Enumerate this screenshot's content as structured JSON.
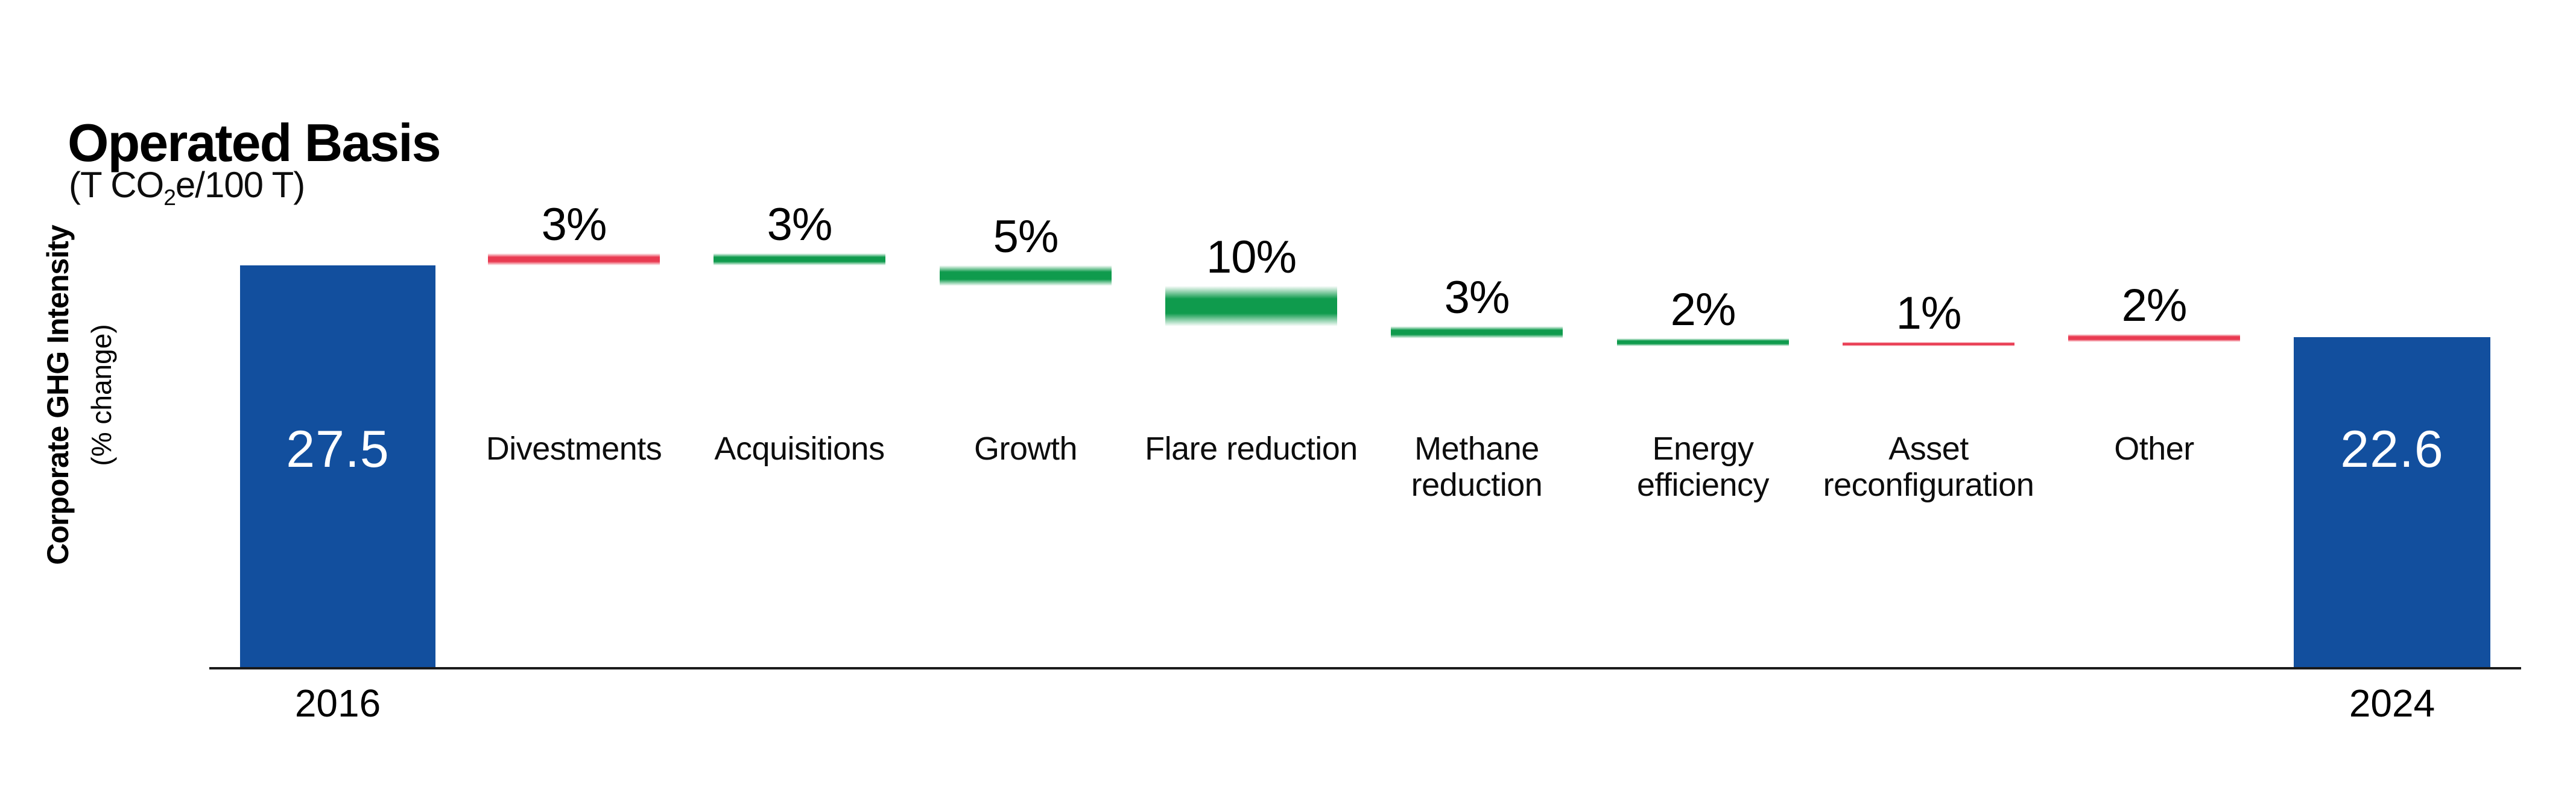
{
  "chart_data": {
    "type": "bar",
    "subtype": "waterfall",
    "title": "Operated Basis",
    "subtitle_parts": {
      "prefix": "(T CO",
      "sub": "2",
      "suffix": "e/100 T)"
    },
    "y_axis": {
      "label": "Corporate GHG Intensity",
      "sub_label": "(% change)"
    },
    "x_categories": [
      "2016",
      "Divestments",
      "Acquisitions",
      "Growth",
      "Flare reduction",
      "Methane reduction",
      "Energy efficiency",
      "Asset reconfiguration",
      "Other",
      "2024"
    ],
    "start_bar": {
      "year": "2016",
      "value": 27.5,
      "display_value": "27.5"
    },
    "end_bar": {
      "year": "2024",
      "value": 22.6,
      "display_value": "22.6"
    },
    "steps": [
      {
        "name": "Divestments",
        "lines": [
          "Divestments"
        ],
        "pct": 3,
        "label": "3%",
        "direction": "increase"
      },
      {
        "name": "Acquisitions",
        "lines": [
          "Acquisitions"
        ],
        "pct": 3,
        "label": "3%",
        "direction": "decrease"
      },
      {
        "name": "Growth",
        "lines": [
          "Growth"
        ],
        "pct": 5,
        "label": "5%",
        "direction": "decrease"
      },
      {
        "name": "Flare reduction",
        "lines": [
          "Flare reduction"
        ],
        "pct": 10,
        "label": "10%",
        "direction": "decrease"
      },
      {
        "name": "Methane reduction",
        "lines": [
          "Methane",
          "reduction"
        ],
        "pct": 3,
        "label": "3%",
        "direction": "decrease"
      },
      {
        "name": "Energy efficiency",
        "lines": [
          "Energy",
          "efficiency"
        ],
        "pct": 2,
        "label": "2%",
        "direction": "decrease"
      },
      {
        "name": "Asset reconfiguration",
        "lines": [
          "Asset",
          "reconfiguration"
        ],
        "pct": 1,
        "label": "1%",
        "direction": "increase"
      },
      {
        "name": "Other",
        "lines": [
          "Other"
        ],
        "pct": 2,
        "label": "2%",
        "direction": "increase"
      }
    ],
    "colors": {
      "increase": "#e93a51",
      "decrease": "#0f9b4d",
      "total_bar": "#124f9e",
      "axis": "#1a1a1a",
      "text": "#000000",
      "bar_value_text": "#ffffff"
    },
    "legend": "none",
    "grid": "off"
  }
}
